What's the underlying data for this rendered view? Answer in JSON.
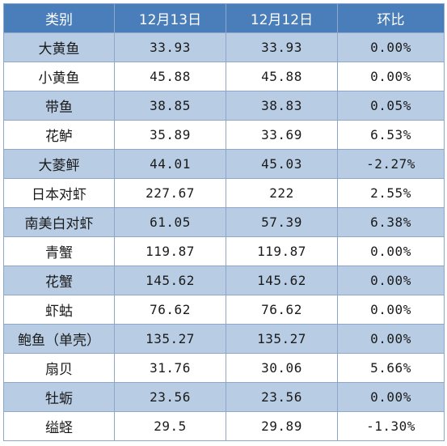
{
  "table": {
    "headers": [
      "类别",
      "12月13日",
      "12月12日",
      "环比"
    ],
    "rows": [
      {
        "category": "大黄鱼",
        "dec13": "33.93",
        "dec12": "33.93",
        "change": "0.00%"
      },
      {
        "category": "小黄鱼",
        "dec13": "45.88",
        "dec12": "45.88",
        "change": "0.00%"
      },
      {
        "category": "带鱼",
        "dec13": "38.85",
        "dec12": "38.83",
        "change": "0.05%"
      },
      {
        "category": "花鲈",
        "dec13": "35.89",
        "dec12": "33.69",
        "change": "6.53%"
      },
      {
        "category": "大菱鲆",
        "dec13": "44.01",
        "dec12": "45.03",
        "change": "-2.27%"
      },
      {
        "category": "日本对虾",
        "dec13": "227.67",
        "dec12": "222",
        "change": "2.55%"
      },
      {
        "category": "南美白对虾",
        "dec13": "61.05",
        "dec12": "57.39",
        "change": "6.38%"
      },
      {
        "category": "青蟹",
        "dec13": "119.87",
        "dec12": "119.87",
        "change": "0.00%"
      },
      {
        "category": "花蟹",
        "dec13": "145.62",
        "dec12": "145.62",
        "change": "0.00%"
      },
      {
        "category": "虾蛄",
        "dec13": "76.62",
        "dec12": "76.62",
        "change": "0.00%"
      },
      {
        "category": "鲍鱼（单壳）",
        "dec13": "135.27",
        "dec12": "135.27",
        "change": "0.00%"
      },
      {
        "category": "扇贝",
        "dec13": "31.76",
        "dec12": "30.06",
        "change": "5.66%"
      },
      {
        "category": "牡蛎",
        "dec13": "23.56",
        "dec12": "23.56",
        "change": "0.00%"
      },
      {
        "category": "缢蛏",
        "dec13": "29.5",
        "dec12": "29.89",
        "change": "-1.30%"
      }
    ]
  },
  "colors": {
    "header_bg": "#4a7ebb",
    "header_text": "#ffffff",
    "stripe_bg": "#b8cce4",
    "plain_bg": "#ffffff",
    "border": "#8ea6c9"
  }
}
